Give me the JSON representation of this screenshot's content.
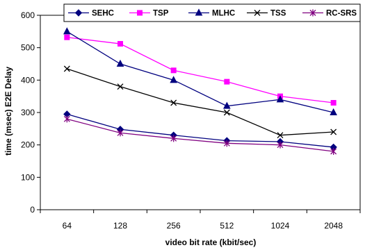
{
  "chart_data": {
    "type": "line",
    "title": "",
    "xlabel": "video bit rate (kbit/sec)",
    "ylabel": "time (msec) E2E Delay",
    "categories": [
      "64",
      "128",
      "256",
      "512",
      "1024",
      "2048"
    ],
    "ylim": [
      0,
      600
    ],
    "yticks": [
      0,
      100,
      200,
      300,
      400,
      500,
      600
    ],
    "grid": false,
    "legend_position": "top",
    "series": [
      {
        "name": "SEHC",
        "values": [
          295,
          248,
          230,
          213,
          210,
          193
        ],
        "color": "#00007f",
        "marker": "diamond"
      },
      {
        "name": "TSP",
        "values": [
          532,
          512,
          430,
          395,
          350,
          330
        ],
        "color": "#ff00ff",
        "marker": "square"
      },
      {
        "name": "MLHC",
        "values": [
          550,
          450,
          400,
          320,
          340,
          300
        ],
        "color": "#00007f",
        "marker": "triangle"
      },
      {
        "name": "TSS",
        "values": [
          435,
          380,
          330,
          300,
          230,
          240
        ],
        "color": "#000000",
        "marker": "x"
      },
      {
        "name": "RC-SRS",
        "values": [
          280,
          237,
          220,
          205,
          200,
          180
        ],
        "color": "#800080",
        "marker": "star"
      }
    ]
  }
}
